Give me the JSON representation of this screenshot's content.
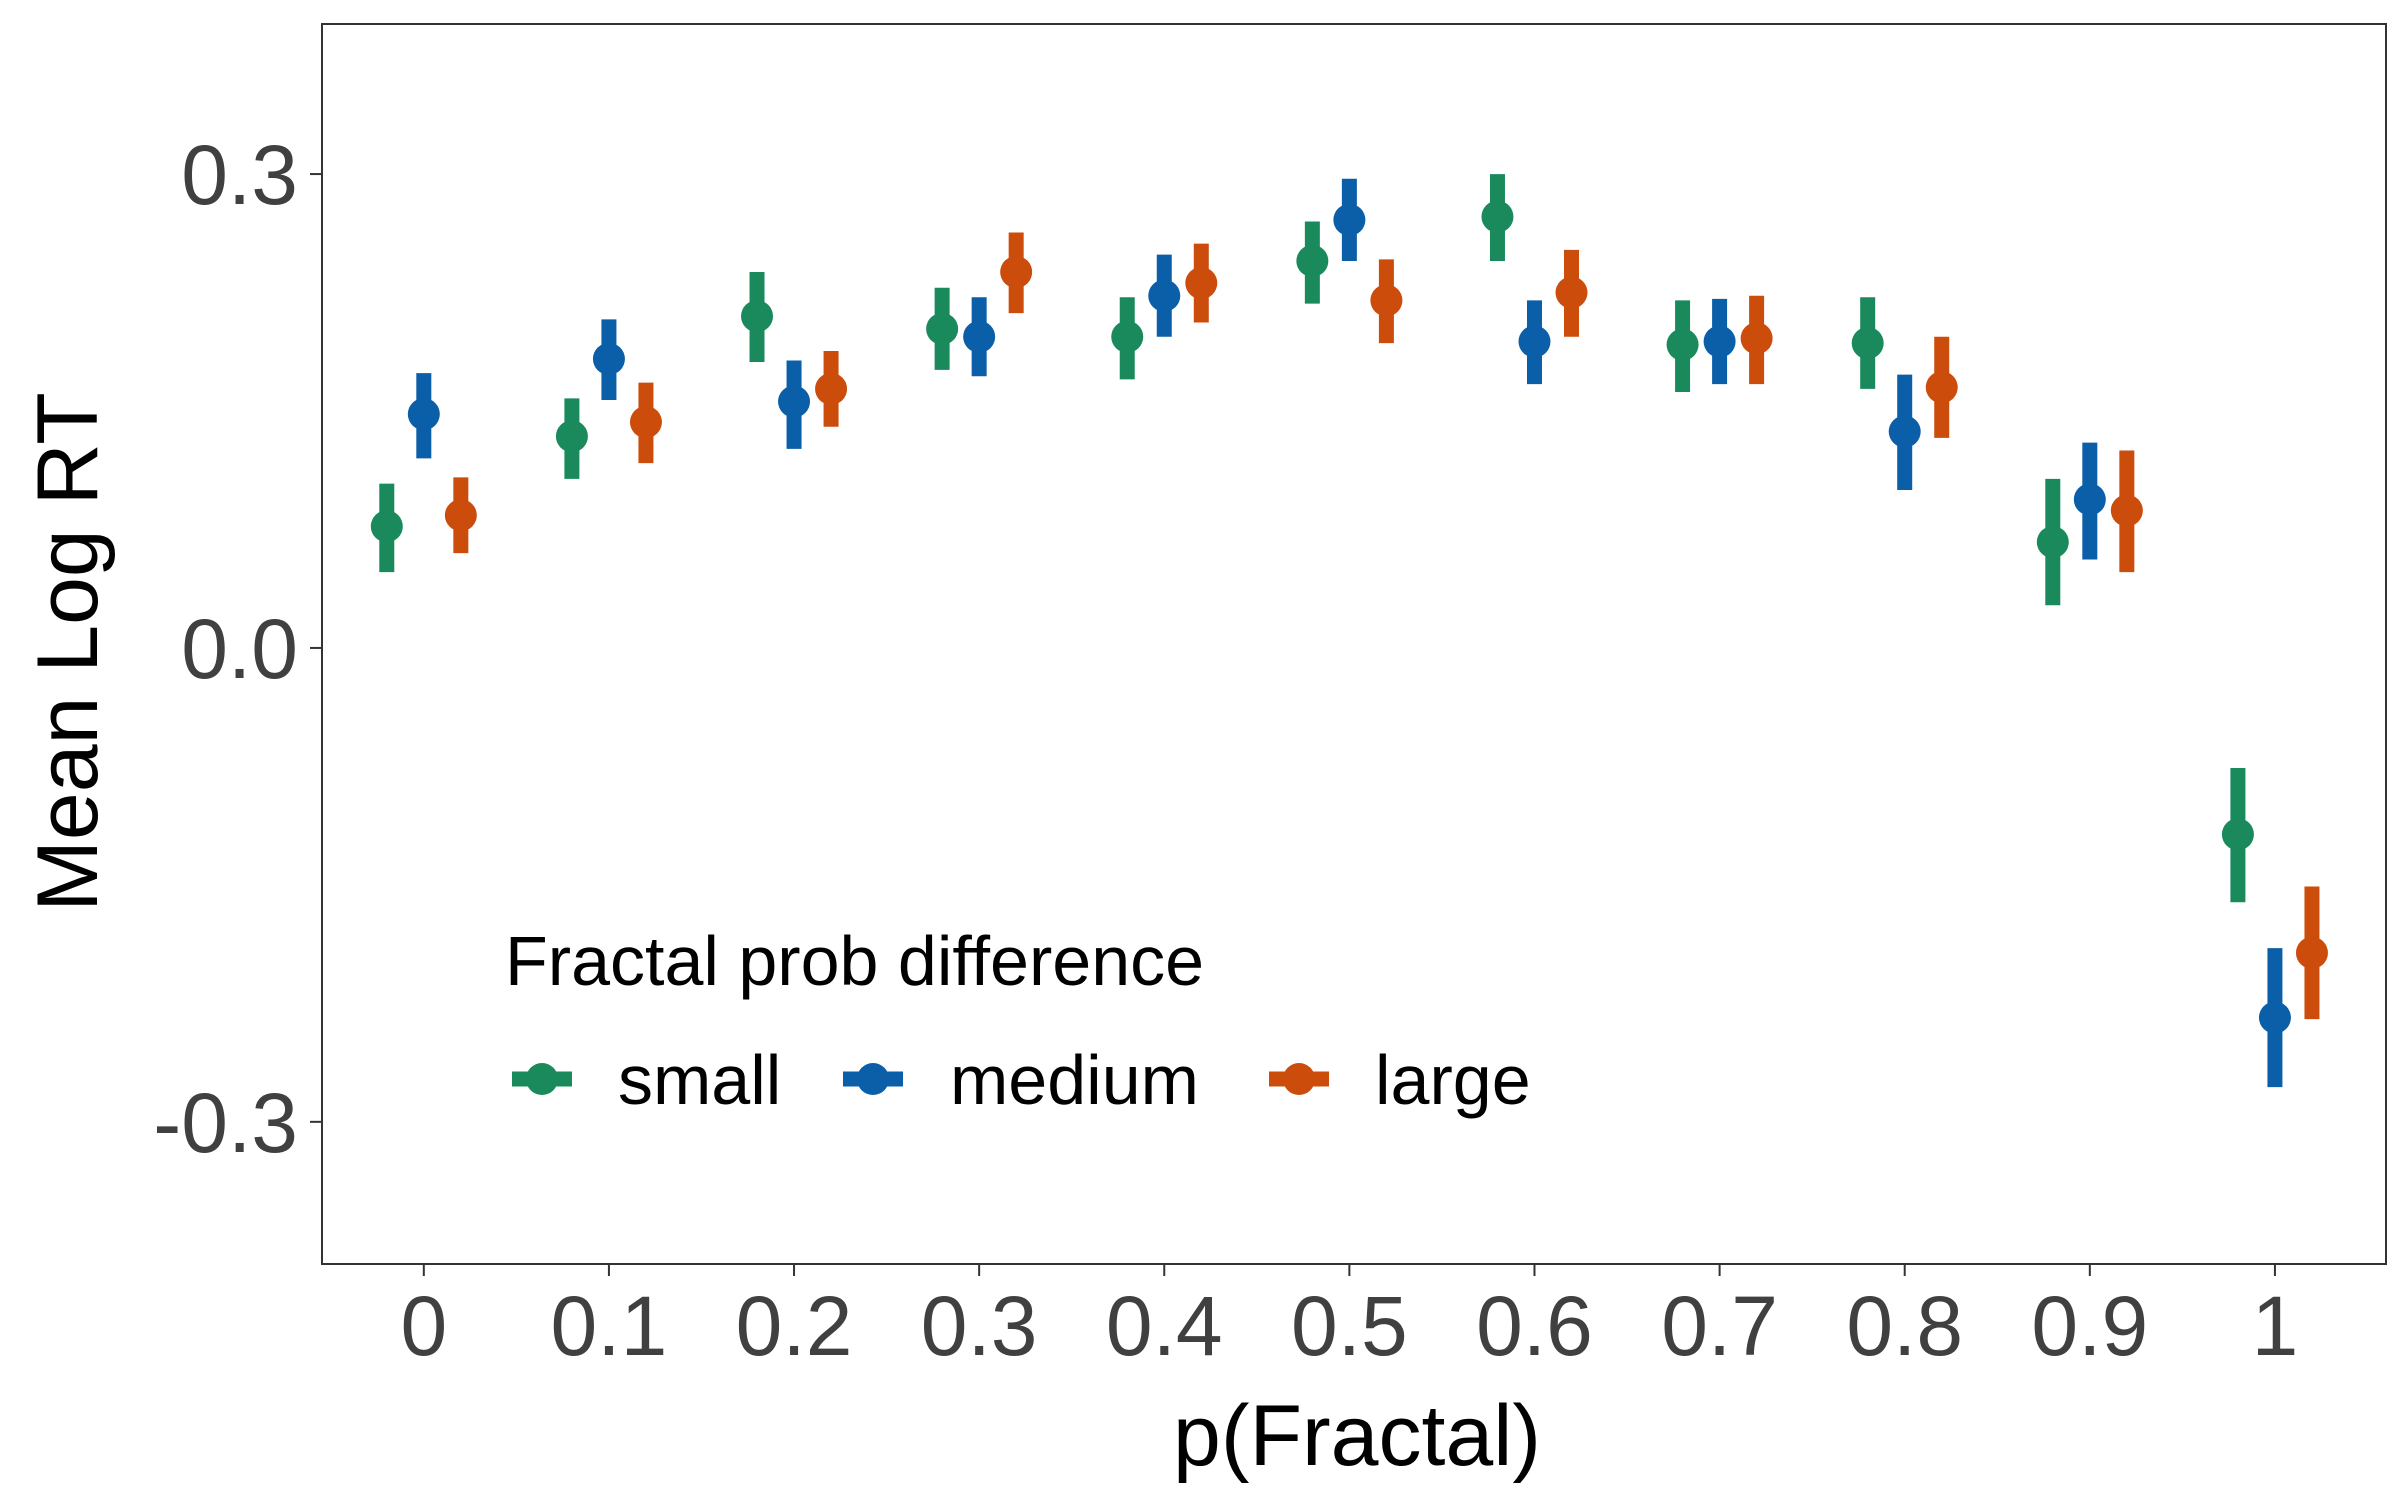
{
  "chart_data": {
    "type": "scatter",
    "title": "",
    "xlabel": "p(Fractal)",
    "ylabel": "Mean Log RT",
    "x_ticks": [
      "0",
      "0.1",
      "0.2",
      "0.3",
      "0.4",
      "0.5",
      "0.6",
      "0.7",
      "0.8",
      "0.9",
      "1"
    ],
    "x_values": [
      0,
      0.1,
      0.2,
      0.3,
      0.4,
      0.5,
      0.6,
      0.7,
      0.8,
      0.9,
      1
    ],
    "y_ticks": [
      "0.3",
      "0.0",
      "-0.3"
    ],
    "y_tick_values": [
      0.3,
      0.0,
      -0.3
    ],
    "xlim": [
      -0.055,
      1.06
    ],
    "ylim": [
      -0.39,
      0.395
    ],
    "grid": false,
    "legend_placement": "bottom-left",
    "legend": {
      "title": "Fractal prob difference",
      "entries": [
        "small",
        "medium",
        "large"
      ]
    },
    "series": [
      {
        "name": "small",
        "color": "#1a8a5c",
        "mean": [
          0.077,
          0.134,
          0.21,
          0.202,
          0.197,
          0.245,
          0.273,
          0.192,
          0.193,
          0.067,
          -0.118
        ],
        "lower": [
          0.048,
          0.107,
          0.181,
          0.176,
          0.17,
          0.218,
          0.245,
          0.162,
          0.164,
          0.027,
          -0.161
        ],
        "upper": [
          0.104,
          0.158,
          0.238,
          0.228,
          0.222,
          0.27,
          0.3,
          0.22,
          0.222,
          0.107,
          -0.076
        ]
      },
      {
        "name": "medium",
        "color": "#0b5ea8",
        "mean": [
          0.148,
          0.183,
          0.156,
          0.197,
          0.223,
          0.271,
          0.194,
          0.194,
          0.137,
          0.094,
          -0.234
        ],
        "lower": [
          0.12,
          0.157,
          0.126,
          0.172,
          0.197,
          0.245,
          0.167,
          0.167,
          0.1,
          0.056,
          -0.278
        ],
        "upper": [
          0.174,
          0.208,
          0.182,
          0.222,
          0.249,
          0.297,
          0.22,
          0.221,
          0.173,
          0.13,
          -0.19
        ]
      },
      {
        "name": "large",
        "color": "#cc4c0b",
        "mean": [
          0.084,
          0.143,
          0.164,
          0.238,
          0.231,
          0.22,
          0.225,
          0.196,
          0.165,
          0.087,
          -0.193
        ],
        "lower": [
          0.06,
          0.117,
          0.14,
          0.212,
          0.206,
          0.193,
          0.197,
          0.167,
          0.133,
          0.048,
          -0.235
        ],
        "upper": [
          0.108,
          0.168,
          0.188,
          0.263,
          0.256,
          0.246,
          0.252,
          0.223,
          0.197,
          0.125,
          -0.151
        ]
      }
    ]
  }
}
